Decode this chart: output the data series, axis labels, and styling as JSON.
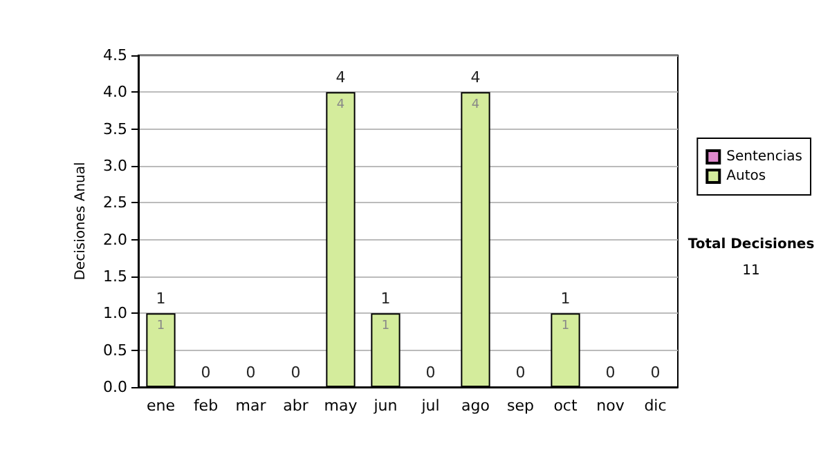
{
  "chart_data": {
    "type": "bar",
    "stacked": true,
    "ylabel": "Decisiones Anual",
    "categories": [
      "ene",
      "feb",
      "mar",
      "abr",
      "may",
      "jun",
      "jul",
      "ago",
      "sep",
      "oct",
      "nov",
      "dic"
    ],
    "series": [
      {
        "name": "Sentencias",
        "color": "#dd88cc",
        "values": [
          0,
          0,
          0,
          0,
          0,
          0,
          0,
          0,
          0,
          0,
          0,
          0
        ]
      },
      {
        "name": "Autos",
        "color": "#d4ec9c",
        "values": [
          1,
          0,
          0,
          0,
          4,
          1,
          0,
          4,
          0,
          1,
          0,
          0
        ],
        "value_labels": [
          "1",
          null,
          null,
          null,
          "4",
          "1",
          null,
          "4",
          null,
          "1",
          null,
          null
        ]
      }
    ],
    "totals": [
      "1",
      "0",
      "0",
      "0",
      "4",
      "1",
      "0",
      "4",
      "0",
      "1",
      "0",
      "0"
    ],
    "ylim": [
      0,
      4.5
    ],
    "yticks": [
      {
        "value": 0,
        "label": "0.0"
      },
      {
        "value": 0.5,
        "label": "0.5"
      },
      {
        "value": 1,
        "label": "1.0"
      },
      {
        "value": 1.5,
        "label": "1.5"
      },
      {
        "value": 2,
        "label": "2.0"
      },
      {
        "value": 2.5,
        "label": "2.5"
      },
      {
        "value": 3,
        "label": "3.0"
      },
      {
        "value": 3.5,
        "label": "3.5"
      },
      {
        "value": 4,
        "label": "4.0"
      },
      {
        "value": 4.5,
        "label": "4.5"
      }
    ],
    "grid": "y",
    "legend": "right",
    "annotations": [
      "Total Decisiones",
      "11"
    ]
  }
}
